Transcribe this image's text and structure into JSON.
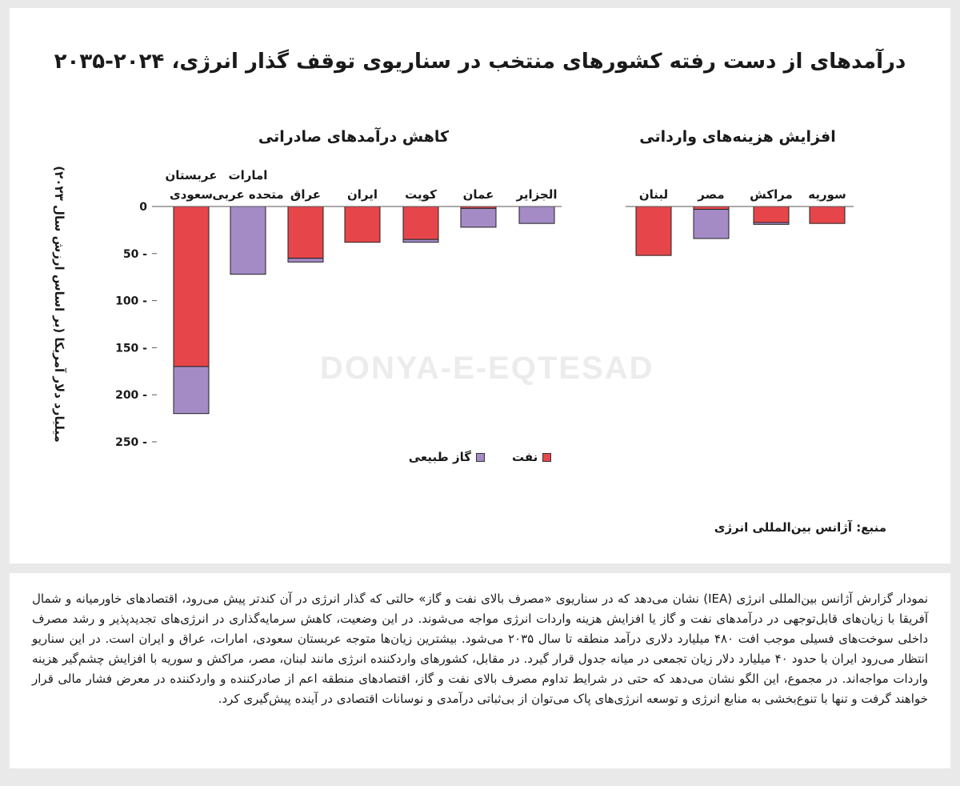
{
  "title": "درآمدهای از دست رفته کشورهای منتخب در سناریوی توقف گذار انرژی، ۲۰۲۴-۲۰۳۵",
  "watermark": "DONYA-E-EQTESAD",
  "source": "منبع: آژانس بین‌المللی انرژی",
  "colors": {
    "oil": "#e6464a",
    "gas": "#a48bc6",
    "axis": "#555555",
    "frame": "#222222"
  },
  "chart_data": {
    "type": "bar",
    "stacked": true,
    "groups": [
      {
        "label": "کاهش درآمدهای صادراتی",
        "categories": [
          "عربستان سعودی",
          "امارات متحده عربی",
          "عراق",
          "ایران",
          "کویت",
          "عمان",
          "الجزایر"
        ]
      },
      {
        "label": "افزایش هزینه‌های وارداتی",
        "categories": [
          "لبنان",
          "مصر",
          "مراکش",
          "سوریه"
        ]
      }
    ],
    "categories": [
      "عربستان سعودی",
      "امارات متحده عربی",
      "عراق",
      "ایران",
      "کویت",
      "عمان",
      "الجزایر",
      "لبنان",
      "مصر",
      "مراکش",
      "سوریه"
    ],
    "series": [
      {
        "name": "نفت",
        "values": [
          -170,
          0,
          -55,
          -38,
          -35,
          -2,
          0,
          -52,
          -3,
          -17,
          -18
        ]
      },
      {
        "name": "گاز طبیعی",
        "values": [
          -50,
          -72,
          -4,
          0,
          -3,
          -20,
          -18,
          0,
          -31,
          -2,
          0
        ]
      }
    ],
    "ylabel": "میلیارد دلار آمریکا (بر اساس ارزش سال ۲۰۲۳)",
    "ylim": [
      -250,
      0
    ],
    "yticks": [
      0,
      -50,
      -100,
      -150,
      -200,
      -250
    ],
    "ytick_labels": [
      "0",
      "50 -",
      "100 -",
      "150 -",
      "200 -",
      "250 -"
    ],
    "legend_position": "bottom-center",
    "grid": false
  },
  "paragraph": "نمودار گزارش آژانس بین‌المللی انرژی (IEA) نشان می‌دهد که در سناریوی «مصرف بالای نفت و گاز» حالتی که گذار انرژی در آن کندتر پیش می‌رود، اقتصادهای خاورمیانه و شمال آفریقا با زیان‌های قابل‌توجهی در درآمدهای نفت و گاز یا افزایش هزینه واردات انرژی مواجه می‌شوند. در این وضعیت، کاهش سرمایه‌گذاری در انرژی‌های تجدیدپذیر و رشد مصرف داخلی سوخت‌های فسیلی موجب افت ۴۸۰ میلیارد دلاری درآمد منطقه تا سال ۲۰۳۵ می‌شود. بیشترین زیان‌ها متوجه عربستان سعودی، امارات، عراق و ایران است. در این سناریو انتظار می‌رود ایران با حدود ۴۰ میلیارد دلار زیان تجمعی در میانه جدول قرار گیرد. در مقابل، کشورهای واردکننده انرژی مانند لبنان، مصر، مراکش و سوریه با افزایش چشم‌گیر هزینه واردات مواجه‌اند. در مجموع، این الگو نشان می‌دهد که حتی در شرایط تداوم مصرف بالای نفت و گاز، اقتصادهای منطقه اعم از صادرکننده و واردکننده در معرض فشار مالی قرار خواهند گرفت و تنها با تنوع‌بخشی به منابع انرژی و توسعه انرژی‌های پاک می‌توان از بی‌ثباتی درآمدی و نوسانات اقتصادی در آینده پیش‌گیری کرد."
}
